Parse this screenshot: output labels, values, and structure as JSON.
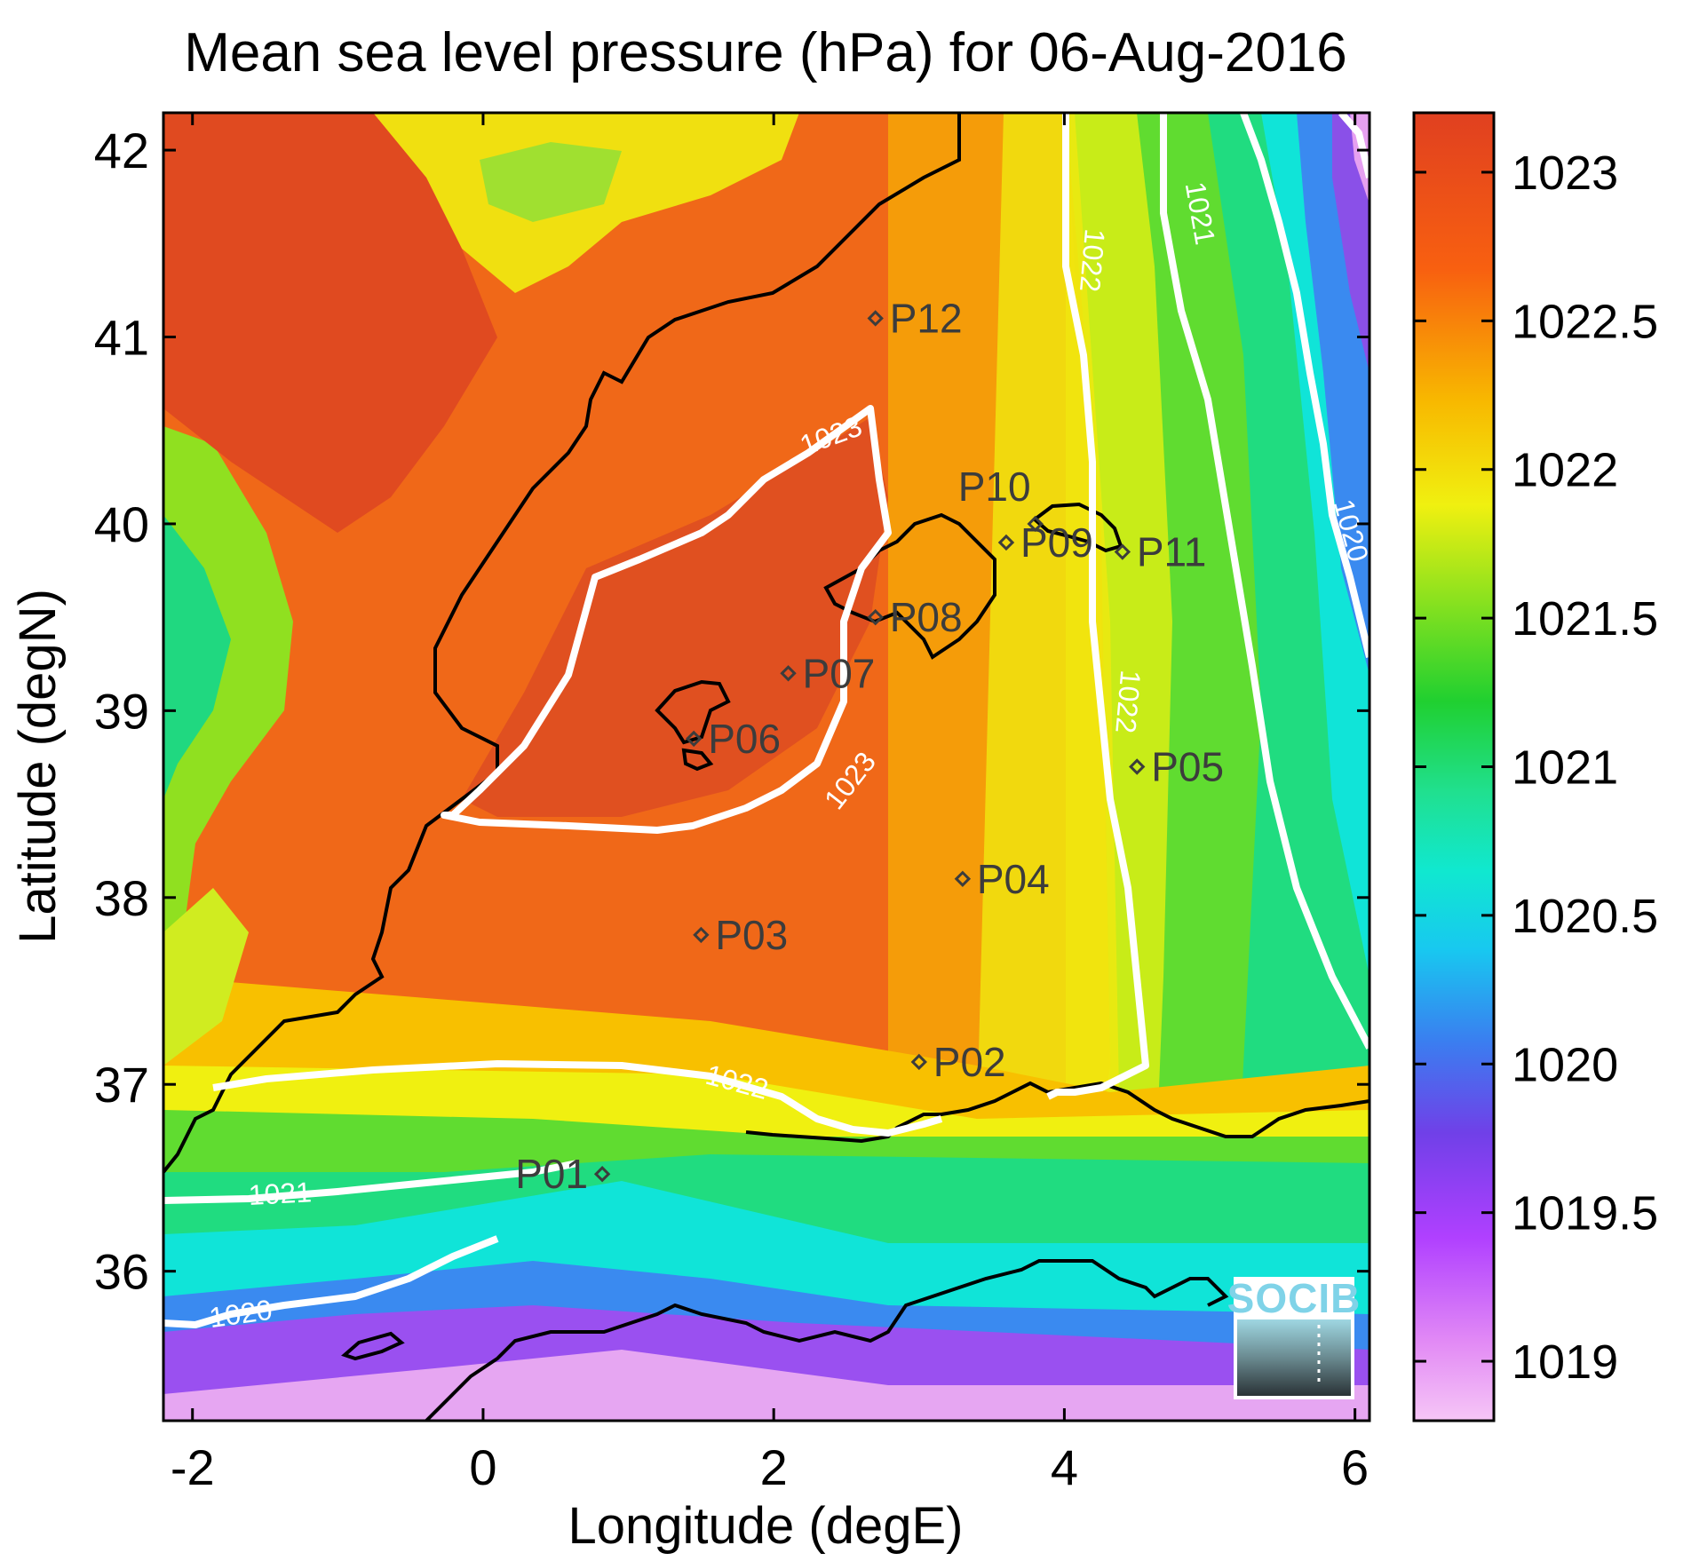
{
  "title": "Mean sea level pressure (hPa) for 06-Aug-2016",
  "xlabel": "Longitude (degE)",
  "ylabel": "Latitude (degN)",
  "map": {
    "lon_range": [
      -2.2,
      6.1
    ],
    "lat_range": [
      35.2,
      42.2
    ],
    "x_ticks": [
      "-2",
      "0",
      "2",
      "4",
      "6"
    ],
    "x_tick_values": [
      -2,
      0,
      2,
      4,
      6
    ],
    "y_ticks": [
      "36",
      "37",
      "38",
      "39",
      "40",
      "41",
      "42"
    ],
    "y_tick_values": [
      36,
      37,
      38,
      39,
      40,
      41,
      42
    ]
  },
  "colorbar": {
    "range": [
      1018.8,
      1023.2
    ],
    "tick_values": [
      1019,
      1019.5,
      1020,
      1020.5,
      1021,
      1021.5,
      1022,
      1022.5,
      1023
    ],
    "tick_labels": [
      "1019",
      "1019.5",
      "1020",
      "1020.5",
      "1021",
      "1021.5",
      "1022",
      "1022.5",
      "1023"
    ],
    "colors": [
      "#f5bdf5",
      "#c040ff",
      "#7a40e8",
      "#3a7ef0",
      "#10e4e0",
      "#20e090",
      "#20d020",
      "#90e020",
      "#f0f010",
      "#f8b000",
      "#f86010",
      "#e04020"
    ]
  },
  "contour_labels": [
    "1023",
    "1023",
    "1022",
    "1022",
    "1022",
    "1021",
    "1021",
    "1020",
    "1020"
  ],
  "stations": [
    {
      "id": "P01",
      "lon": 0.82,
      "lat": 36.52
    },
    {
      "id": "P02",
      "lon": 3.0,
      "lat": 37.12
    },
    {
      "id": "P03",
      "lon": 1.5,
      "lat": 37.8
    },
    {
      "id": "P04",
      "lon": 3.3,
      "lat": 38.1
    },
    {
      "id": "P05",
      "lon": 4.5,
      "lat": 38.7
    },
    {
      "id": "P06",
      "lon": 1.45,
      "lat": 38.85
    },
    {
      "id": "P07",
      "lon": 2.1,
      "lat": 39.2
    },
    {
      "id": "P08",
      "lon": 2.7,
      "lat": 39.5
    },
    {
      "id": "P09",
      "lon": 3.6,
      "lat": 39.9
    },
    {
      "id": "P10",
      "lon": 3.8,
      "lat": 40.0
    },
    {
      "id": "P11",
      "lon": 4.4,
      "lat": 39.85
    },
    {
      "id": "P12",
      "lon": 2.7,
      "lat": 41.1
    }
  ],
  "logo": {
    "text": "SOCIB"
  }
}
